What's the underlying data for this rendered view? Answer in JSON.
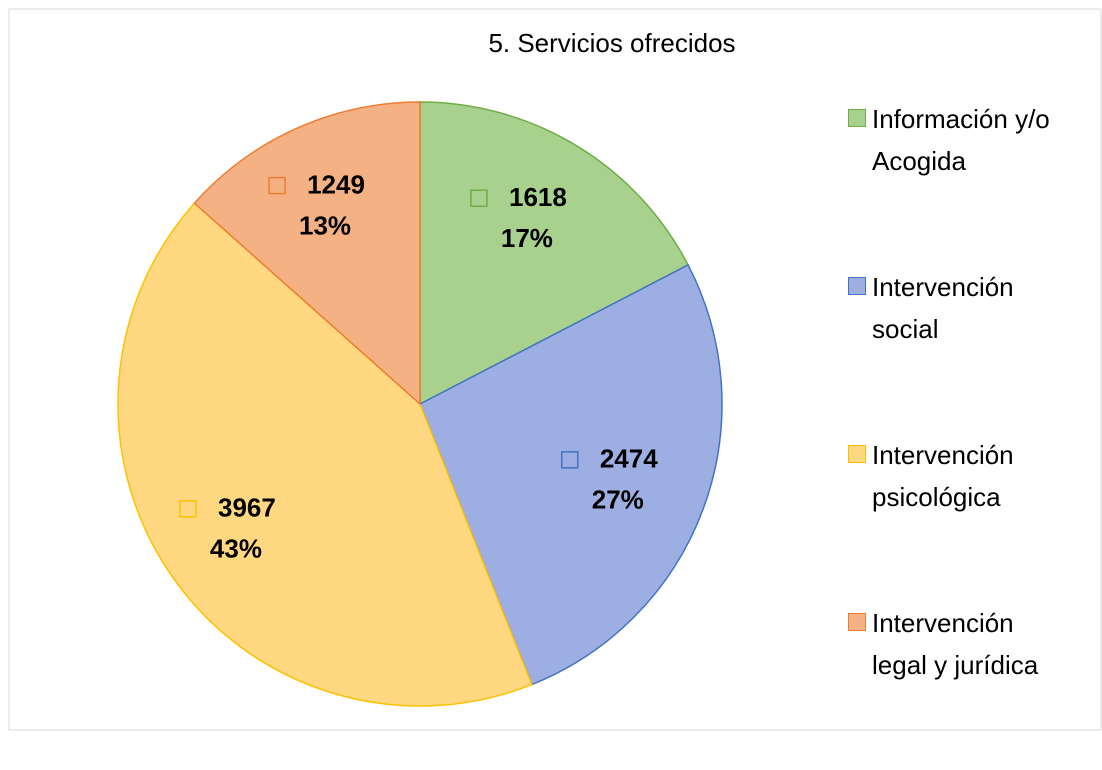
{
  "chart_data": {
    "type": "pie",
    "title": "5. Servicios ofrecidos",
    "categories": [
      "Información y/o Acogida",
      "Intervención social",
      "Intervención psicológica",
      "Intervención legal y jurídica"
    ],
    "values": [
      1618,
      2474,
      3967,
      1249
    ],
    "percent_labels": [
      "17%",
      "27%",
      "43%",
      "13%"
    ],
    "colors": [
      "#a9d18e",
      "#9dafe2",
      "#ffd881",
      "#f4b183"
    ],
    "edge_colors": [
      "#70ad47",
      "#4472c4",
      "#ffc000",
      "#ed7d31"
    ],
    "legend": "right"
  }
}
